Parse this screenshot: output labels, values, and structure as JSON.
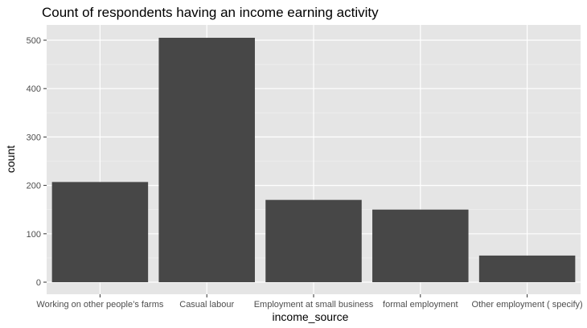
{
  "chart_data": {
    "type": "bar",
    "title": "Count of respondents having an income earning activity",
    "xlabel": "income_source",
    "ylabel": "count",
    "categories": [
      "Working on other people’s farms",
      "Casual labour",
      "Employment at small business",
      "formal employment",
      "Other employment ( specify)"
    ],
    "values": [
      207,
      505,
      170,
      150,
      55
    ],
    "ylim": [
      0,
      530
    ],
    "yticks": [
      0,
      100,
      200,
      300,
      400,
      500
    ],
    "grid": true,
    "colors": {
      "bar": "#474747",
      "panel": "#e5e5e5",
      "grid_major": "#ffffff",
      "grid_minor": "#f2f2f2"
    }
  }
}
